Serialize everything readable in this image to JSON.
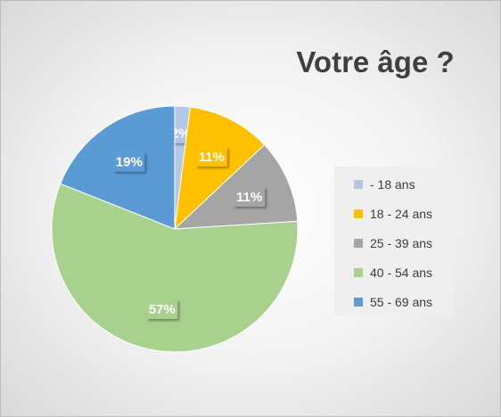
{
  "chart_data": {
    "type": "pie",
    "title": "Votre âge ?",
    "legend_position": "right",
    "slices": [
      {
        "label": "- 18 ans",
        "value": 2,
        "display": "2%",
        "color": "#b4c7e7"
      },
      {
        "label": "18 - 24 ans",
        "value": 11,
        "display": "11%",
        "color": "#ffc000"
      },
      {
        "label": "25 - 39 ans",
        "value": 11,
        "display": "11%",
        "color": "#a5a5a5"
      },
      {
        "label": "40 - 54 ans",
        "value": 57,
        "display": "57%",
        "color": "#a9d18e"
      },
      {
        "label": "55 - 69 ans",
        "value": 19,
        "display": "19%",
        "color": "#5b9bd5"
      }
    ]
  }
}
